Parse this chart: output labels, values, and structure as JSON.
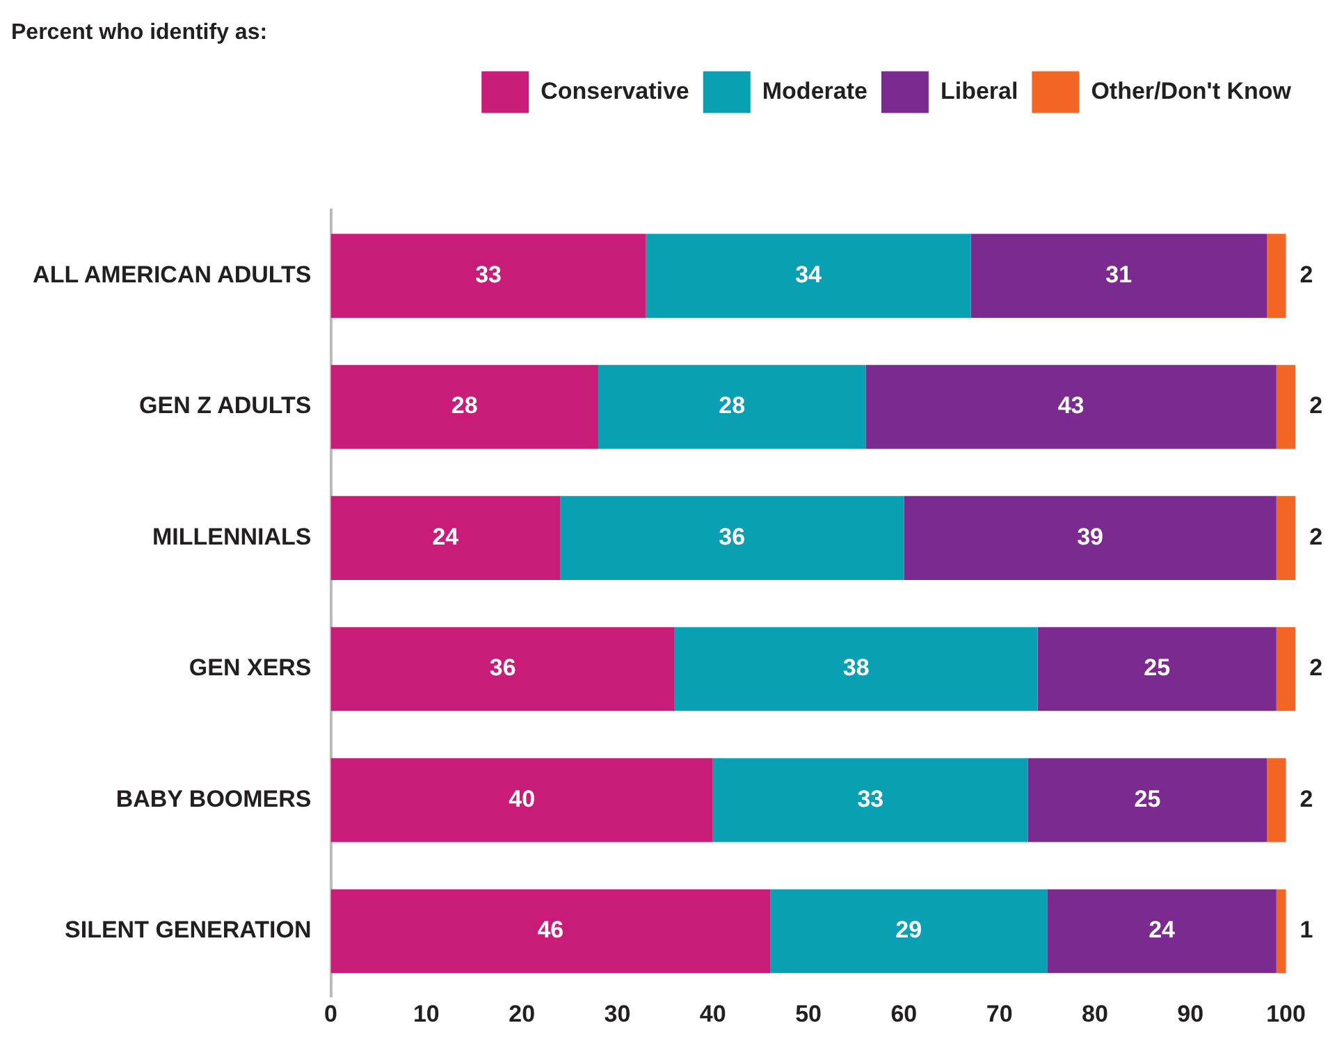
{
  "chart_data": {
    "type": "bar",
    "orientation": "horizontal",
    "stacked": true,
    "title": "Percent who identify as:",
    "categories": [
      "ALL AMERICAN ADULTS",
      "GEN Z ADULTS",
      "MILLENNIALS",
      "GEN XERS",
      "BABY BOOMERS",
      "SILENT GENERATION"
    ],
    "series": [
      {
        "name": "Conservative",
        "color": "#c81c78",
        "values": [
          33,
          28,
          24,
          36,
          40,
          46
        ]
      },
      {
        "name": "Moderate",
        "color": "#0aa0b4",
        "values": [
          34,
          28,
          36,
          38,
          33,
          29
        ]
      },
      {
        "name": "Liberal",
        "color": "#7b2a8f",
        "values": [
          31,
          43,
          39,
          25,
          25,
          24
        ]
      },
      {
        "name": "Other/Don't Know",
        "color": "#f26522",
        "values": [
          2,
          2,
          2,
          2,
          2,
          1
        ]
      }
    ],
    "xlim": [
      0,
      102
    ],
    "xticks": [
      0,
      10,
      20,
      30,
      40,
      50,
      60,
      70,
      80,
      90,
      100
    ],
    "grid": false,
    "legend": "top right",
    "data_labels": true
  }
}
